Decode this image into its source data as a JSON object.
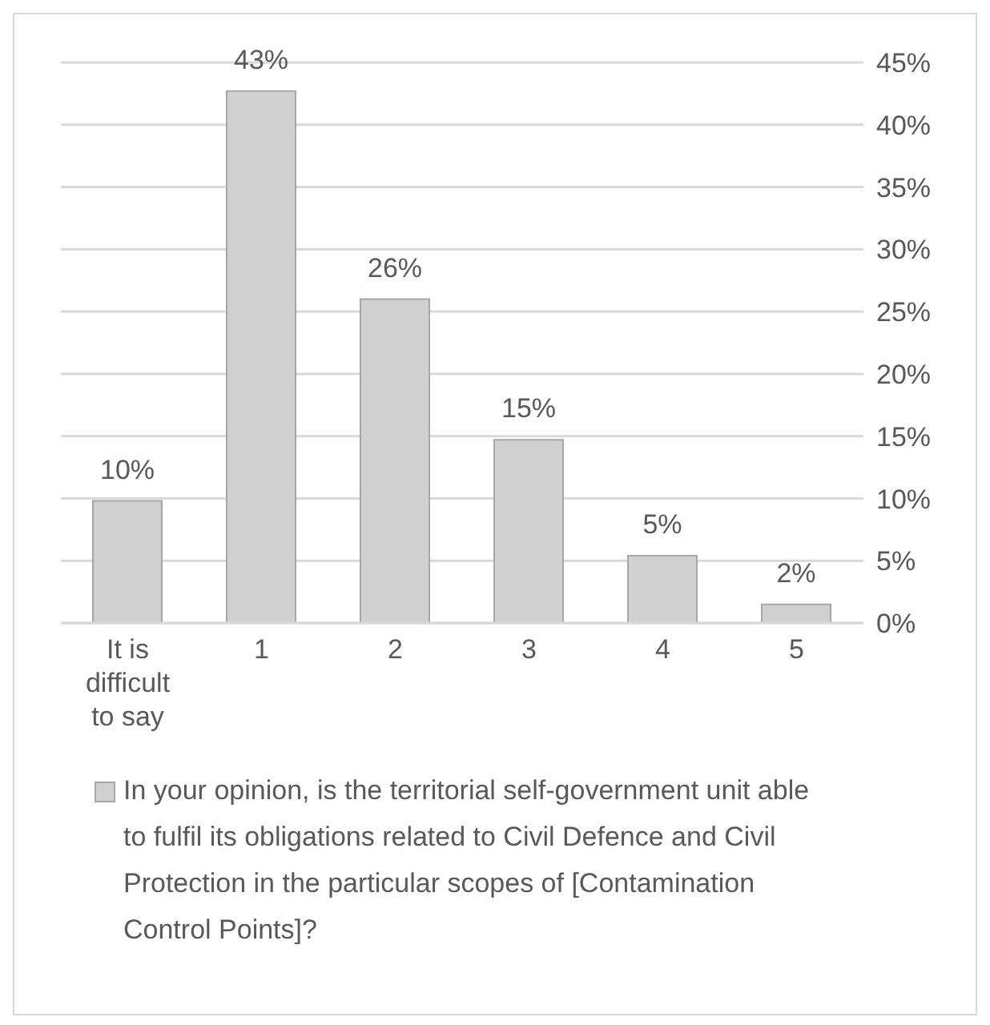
{
  "chart_data": {
    "type": "bar",
    "categories": [
      "It is difficult to say",
      "1",
      "2",
      "3",
      "4",
      "5"
    ],
    "series": [
      {
        "name": "In your opinion, is the territorial self-government unit able to fulfil its obligations related to Civil Defence and Civil Protection in the particular scopes of [Contamination Control Points]?",
        "color": "#d0d0d0",
        "values": [
          9.8,
          42.7,
          26,
          14.7,
          5.4,
          1.5
        ],
        "value_labels": [
          "10%",
          "43%",
          "26%",
          "15%",
          "5%",
          "2%"
        ]
      }
    ],
    "ylim": [
      0,
      45
    ],
    "yticks": [
      {
        "value": 0,
        "label": "0%"
      },
      {
        "value": 5,
        "label": "5%"
      },
      {
        "value": 10,
        "label": "10%"
      },
      {
        "value": 15,
        "label": "15%"
      },
      {
        "value": 20,
        "label": "20%"
      },
      {
        "value": 25,
        "label": "25%"
      },
      {
        "value": 30,
        "label": "30%"
      },
      {
        "value": 35,
        "label": "35%"
      },
      {
        "value": 40,
        "label": "40%"
      },
      {
        "value": 45,
        "label": "45%"
      }
    ],
    "grid": "y",
    "legend": "bottom"
  }
}
